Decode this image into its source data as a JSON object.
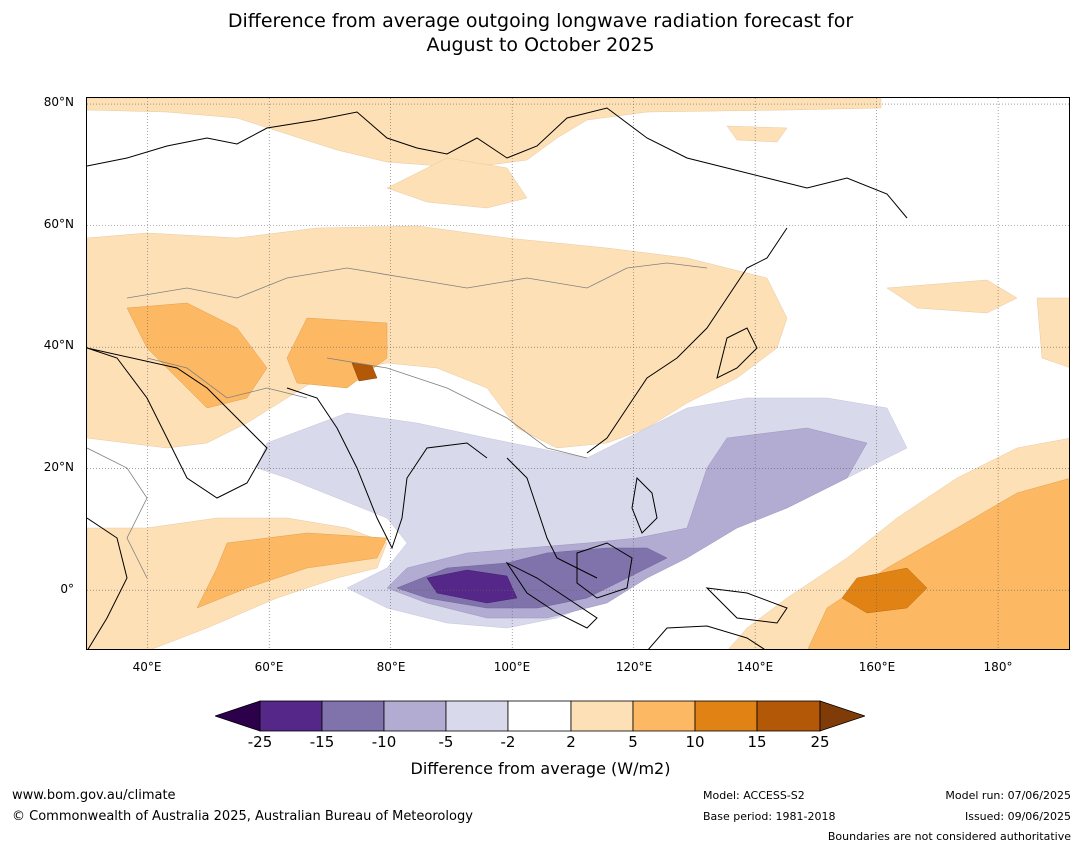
{
  "title": {
    "line1": "Difference from average outgoing longwave radiation forecast for",
    "line2": "August to October 2025"
  },
  "map": {
    "projection": "equirectangular",
    "lon_range": [
      30,
      192
    ],
    "lat_range": [
      -10,
      81
    ],
    "gridlines": "dotted",
    "lat_labels": [
      "80°N",
      "60°N",
      "40°N",
      "20°N",
      "0°"
    ],
    "lon_labels": [
      "40°E",
      "60°E",
      "80°E",
      "100°E",
      "120°E",
      "140°E",
      "160°E",
      "180°"
    ],
    "land_outline_color": "#000000",
    "boundary_color": "#808080"
  },
  "colorbar": {
    "ticks": [
      "-25",
      "-15",
      "-10",
      "-5",
      "-2",
      "2",
      "5",
      "10",
      "15",
      "25"
    ],
    "colors": {
      "below_-25": "#2d004b",
      "-25_-15": "#542788",
      "-15_-10": "#8073ac",
      "-10_-5": "#b2abd2",
      "-5_-2": "#d8daeb",
      "-2_2": "#ffffff",
      "2_5": "#fee0b6",
      "5_10": "#fdb863",
      "10_15": "#e08214",
      "15_25": "#b35806",
      "above_25": "#7f3b08"
    },
    "label": "Difference from average (W/m2)"
  },
  "footer": {
    "website": "www.bom.gov.au/climate",
    "copyright": "© Commonwealth of Australia 2025, Australian Bureau of Meteorology",
    "model": "Model: ACCESS-S2",
    "base_period": "Base period: 1981-2018",
    "model_run": "Model run: 07/06/2025",
    "issued": "Issued: 09/06/2025",
    "disclaimer": "Boundaries are not considered authoritative"
  }
}
